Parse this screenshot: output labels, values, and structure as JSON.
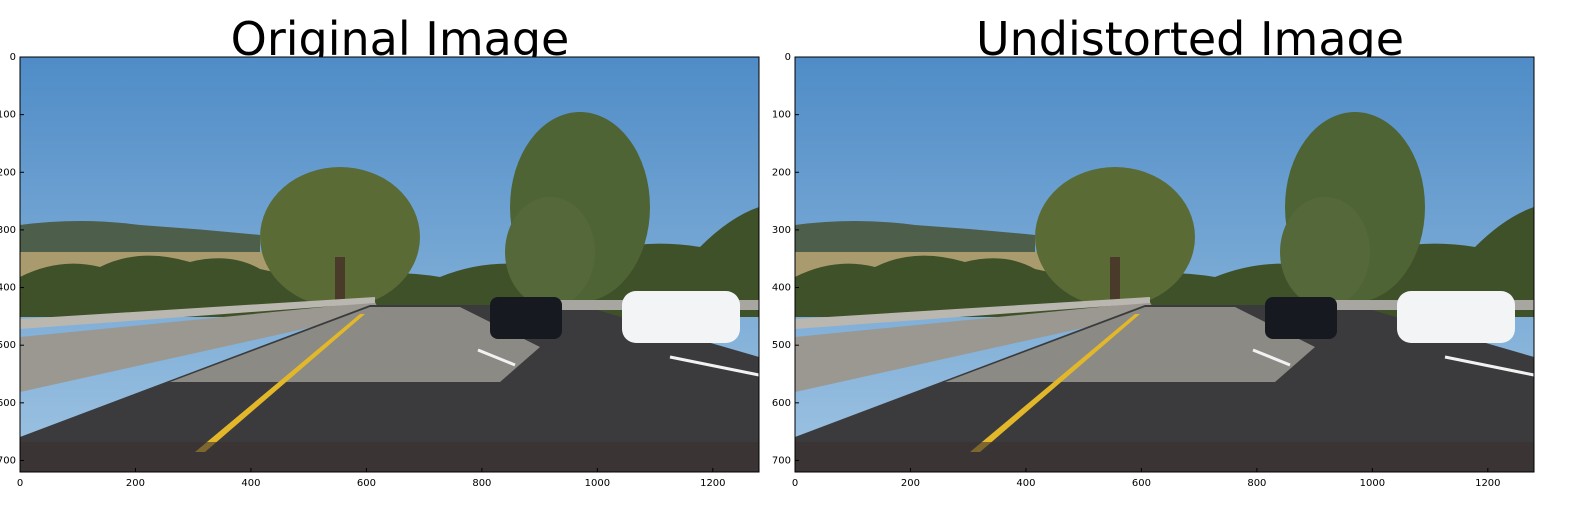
{
  "figure": {
    "panels": [
      {
        "title": "Original Image",
        "xticks": [
          "0",
          "200",
          "400",
          "600",
          "800",
          "1000",
          "1200"
        ],
        "yticks": [
          "0",
          "100",
          "200",
          "300",
          "400",
          "500",
          "600",
          "700"
        ],
        "xlim": [
          0,
          1280
        ],
        "ylim": [
          0,
          720
        ]
      },
      {
        "title": "Undistorted Image",
        "xticks": [
          "0",
          "200",
          "400",
          "600",
          "800",
          "1000",
          "1200"
        ],
        "yticks": [
          "0",
          "100",
          "200",
          "300",
          "400",
          "500",
          "600",
          "700"
        ],
        "xlim": [
          0,
          1280
        ],
        "ylim": [
          0,
          720
        ]
      }
    ]
  },
  "scene": {
    "description_icon": "road-photo",
    "colors": {
      "sky_top": "#4f8cc7",
      "sky_bottom": "#9fc4e2",
      "hills": "#4d5e4a",
      "trees": "#5b6b36",
      "road": "#3b3b3d",
      "concrete": "#8c8a84",
      "lane_yellow": "#e2b82a",
      "lane_white": "#f2f2f2",
      "car_black": "#161a20",
      "car_white": "#f3f4f5"
    }
  }
}
